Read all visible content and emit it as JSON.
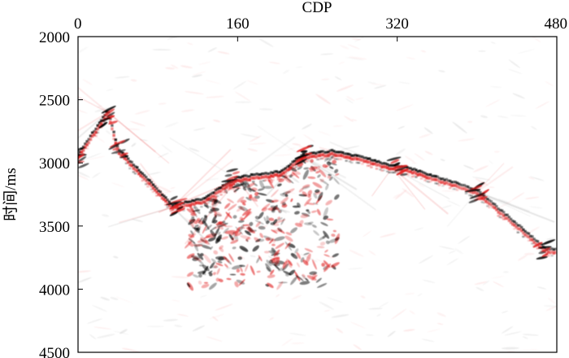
{
  "chart_data": {
    "type": "heatmap",
    "title": "",
    "xlabel": "CDP",
    "ylabel": "时间/ms",
    "x_axis_position": "top",
    "xlim": [
      0,
      480
    ],
    "ylim": [
      2000,
      4500
    ],
    "y_inverted": true,
    "x_ticks": [
      0,
      160,
      320,
      480
    ],
    "y_ticks": [
      2000,
      2500,
      3000,
      3500,
      4000,
      4500
    ],
    "grid": false,
    "legend": "none",
    "colormap": {
      "positive": "#e02020",
      "negative": "#000000",
      "background": "#ffffff"
    },
    "description_events": [
      {
        "cdp": 0,
        "time_ms": 2950
      },
      {
        "cdp": 30,
        "time_ms": 2600
      },
      {
        "cdp": 40,
        "time_ms": 2900
      },
      {
        "cdp": 95,
        "time_ms": 3350
      },
      {
        "cdp": 125,
        "time_ms": 3300
      },
      {
        "cdp": 160,
        "time_ms": 3130
      },
      {
        "cdp": 205,
        "time_ms": 3080
      },
      {
        "cdp": 225,
        "time_ms": 2950
      },
      {
        "cdp": 255,
        "time_ms": 2920
      },
      {
        "cdp": 285,
        "time_ms": 2970
      },
      {
        "cdp": 315,
        "time_ms": 3040
      },
      {
        "cdp": 330,
        "time_ms": 3050
      },
      {
        "cdp": 400,
        "time_ms": 3230
      },
      {
        "cdp": 470,
        "time_ms": 3700
      }
    ]
  }
}
